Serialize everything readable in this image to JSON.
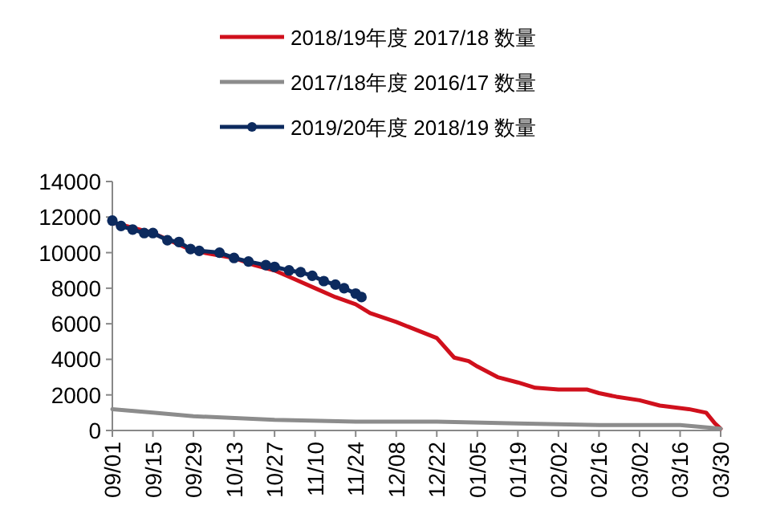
{
  "chart_data": {
    "type": "line",
    "legend": "top",
    "grid": false,
    "line_style": "solid",
    "xlim": [
      "2018-09-01",
      "2019-03-30"
    ],
    "xticks": [
      {
        "value": "2018-09-01",
        "label": "09/01"
      },
      {
        "value": "2018-09-15",
        "label": "09/15"
      },
      {
        "value": "2018-09-29",
        "label": "09/29"
      },
      {
        "value": "2018-10-13",
        "label": "10/13"
      },
      {
        "value": "2018-10-27",
        "label": "10/27"
      },
      {
        "value": "2018-11-10",
        "label": "11/10"
      },
      {
        "value": "2018-11-24",
        "label": "11/24"
      },
      {
        "value": "2018-12-08",
        "label": "12/08"
      },
      {
        "value": "2018-12-22",
        "label": "12/22"
      },
      {
        "value": "2019-01-05",
        "label": "01/05"
      },
      {
        "value": "2019-01-19",
        "label": "01/19"
      },
      {
        "value": "2019-02-02",
        "label": "02/02"
      },
      {
        "value": "2019-02-16",
        "label": "02/16"
      },
      {
        "value": "2019-03-02",
        "label": "03/02"
      },
      {
        "value": "2019-03-16",
        "label": "03/16"
      },
      {
        "value": "2019-03-30",
        "label": "03/30"
      }
    ],
    "ylim": [
      0,
      14000
    ],
    "yticks": [
      0,
      2000,
      4000,
      6000,
      8000,
      10000,
      12000,
      14000
    ],
    "series": [
      {
        "name": "2018/19年度 2017/18 数量",
        "color": "#d0101c",
        "marker": "none",
        "x": [
          "2018-09-01",
          "2018-09-15",
          "2018-09-29",
          "2018-10-13",
          "2018-10-20",
          "2018-10-27",
          "2018-11-03",
          "2018-11-10",
          "2018-11-17",
          "2018-11-24",
          "2018-11-29",
          "2018-12-08",
          "2018-12-22",
          "2018-12-28",
          "2019-01-02",
          "2019-01-05",
          "2019-01-12",
          "2019-01-19",
          "2019-01-25",
          "2019-02-02",
          "2019-02-12",
          "2019-02-16",
          "2019-02-22",
          "2019-03-02",
          "2019-03-09",
          "2019-03-19",
          "2019-03-25",
          "2019-03-28",
          "2019-03-30"
        ],
        "values": [
          11700,
          11100,
          10100,
          9700,
          9300,
          9000,
          8500,
          8000,
          7500,
          7100,
          6600,
          6100,
          5200,
          4100,
          3900,
          3600,
          3000,
          2700,
          2400,
          2300,
          2300,
          2100,
          1900,
          1700,
          1400,
          1200,
          1000,
          400,
          100
        ]
      },
      {
        "name": "2017/18年度 2016/17 数量",
        "color": "#8c8c8c",
        "marker": "none",
        "x": [
          "2018-09-01",
          "2018-09-15",
          "2018-09-29",
          "2018-10-27",
          "2018-11-24",
          "2018-12-22",
          "2019-01-19",
          "2019-02-16",
          "2019-03-16",
          "2019-03-30"
        ],
        "values": [
          1200,
          1000,
          800,
          600,
          500,
          500,
          400,
          300,
          300,
          100
        ]
      },
      {
        "name": "2019/20年度 2018/19 数量",
        "color": "#0c2a5e",
        "marker": "circle",
        "x": [
          "2018-09-01",
          "2018-09-04",
          "2018-09-08",
          "2018-09-12",
          "2018-09-15",
          "2018-09-20",
          "2018-09-24",
          "2018-09-28",
          "2018-10-01",
          "2018-10-08",
          "2018-10-13",
          "2018-10-18",
          "2018-10-24",
          "2018-10-27",
          "2018-11-01",
          "2018-11-05",
          "2018-11-09",
          "2018-11-13",
          "2018-11-17",
          "2018-11-20",
          "2018-11-24",
          "2018-11-26"
        ],
        "values": [
          11800,
          11500,
          11300,
          11100,
          11100,
          10700,
          10600,
          10200,
          10100,
          10000,
          9700,
          9500,
          9300,
          9200,
          9000,
          8900,
          8700,
          8400,
          8200,
          8000,
          7700,
          7500
        ]
      }
    ]
  }
}
